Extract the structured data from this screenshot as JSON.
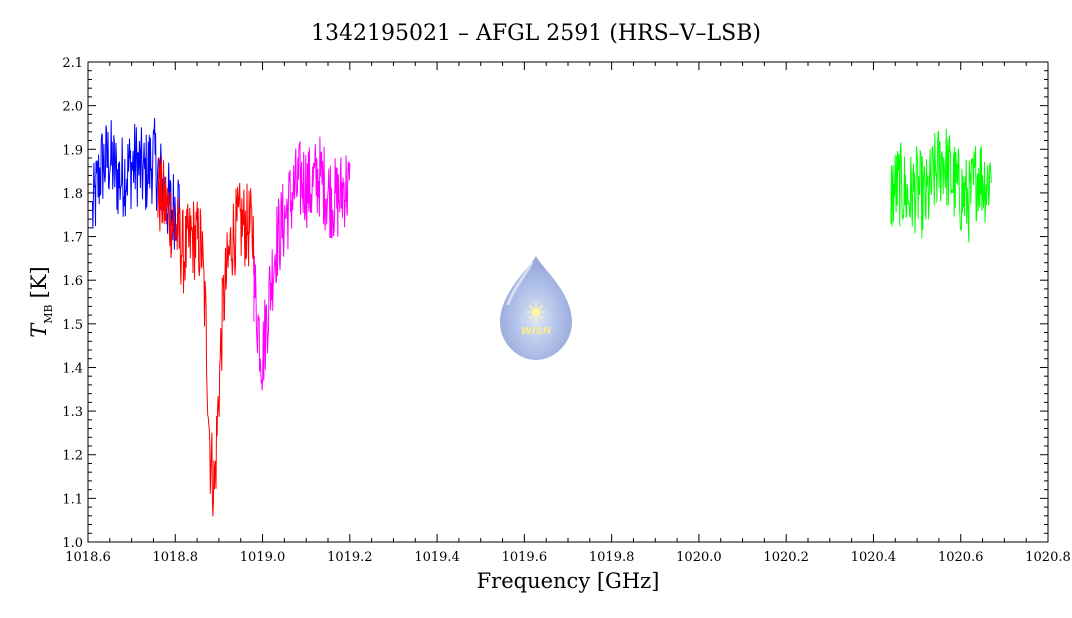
{
  "chart_data": {
    "type": "line",
    "title": "1342195021 – AFGL 2591 (HRS–V–LSB)",
    "xlabel": "Frequency [GHz]",
    "ylabel": {
      "symbol": "T",
      "subscript": "MB",
      "unit": "[K]"
    },
    "xlim": [
      1018.6,
      1020.8
    ],
    "ylim": [
      1.0,
      2.1
    ],
    "xticks": [
      "1018.6",
      "1018.8",
      "1019.0",
      "1019.2",
      "1019.4",
      "1019.6",
      "1019.8",
      "1020.0",
      "1020.2",
      "1020.4",
      "1020.6",
      "1020.8"
    ],
    "yticks": [
      "1.0",
      "1.1",
      "1.2",
      "1.3",
      "1.4",
      "1.5",
      "1.6",
      "1.7",
      "1.8",
      "1.9",
      "2.0",
      "2.1"
    ],
    "grid": false,
    "series": [
      {
        "color": "#0000ff",
        "x": [
          1018.61,
          1018.63,
          1018.65,
          1018.67,
          1018.69,
          1018.71,
          1018.73,
          1018.75,
          1018.77,
          1018.79,
          1018.81
        ],
        "y": [
          1.75,
          1.86,
          1.88,
          1.83,
          1.85,
          1.87,
          1.84,
          1.88,
          1.82,
          1.76,
          1.78
        ]
      },
      {
        "color": "#ff0000",
        "x": [
          1018.76,
          1018.78,
          1018.8,
          1018.82,
          1018.84,
          1018.86,
          1018.87,
          1018.88,
          1018.89,
          1018.9,
          1018.91,
          1018.93,
          1018.95,
          1018.97,
          1018.98
        ],
        "y": [
          1.8,
          1.77,
          1.72,
          1.66,
          1.7,
          1.68,
          1.5,
          1.2,
          1.12,
          1.35,
          1.55,
          1.7,
          1.73,
          1.72,
          1.7
        ]
      },
      {
        "color": "#ff00ff",
        "x": [
          1018.98,
          1018.99,
          1019.0,
          1019.01,
          1019.03,
          1019.05,
          1019.07,
          1019.09,
          1019.11,
          1019.13,
          1019.15,
          1019.17,
          1019.19,
          1019.2
        ],
        "y": [
          1.6,
          1.5,
          1.42,
          1.52,
          1.68,
          1.74,
          1.8,
          1.83,
          1.81,
          1.84,
          1.8,
          1.78,
          1.82,
          1.8
        ]
      },
      {
        "color": "#00ff00",
        "x": [
          1020.44,
          1020.46,
          1020.48,
          1020.5,
          1020.52,
          1020.54,
          1020.56,
          1020.58,
          1020.6,
          1020.62,
          1020.64,
          1020.66,
          1020.67
        ],
        "y": [
          1.8,
          1.82,
          1.79,
          1.81,
          1.78,
          1.84,
          1.88,
          1.83,
          1.8,
          1.78,
          1.85,
          1.82,
          1.86
        ]
      }
    ]
  },
  "watermark_text": "WISH"
}
